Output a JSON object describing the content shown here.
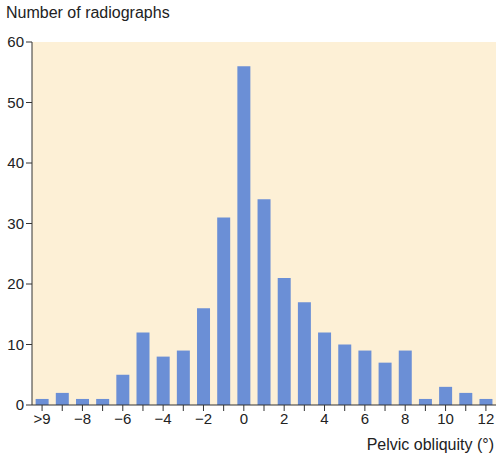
{
  "chart_data": {
    "type": "bar",
    "y_label": "Number of radiographs",
    "x_label": "Pelvic obliquity (°)",
    "categories": [
      ">9",
      null,
      "−8",
      null,
      "−6",
      null,
      "−4",
      null,
      "−2",
      null,
      "0",
      null,
      "2",
      null,
      "4",
      null,
      "6",
      null,
      "8",
      null,
      "10",
      null,
      "12"
    ],
    "values": [
      1,
      2,
      1,
      1,
      5,
      12,
      8,
      9,
      16,
      31,
      56,
      34,
      21,
      17,
      12,
      10,
      9,
      7,
      9,
      1,
      3,
      2,
      1
    ],
    "color": "#6b8fd6",
    "ylim": [
      0,
      60
    ],
    "yticks": [
      0,
      10,
      20,
      30,
      40,
      50,
      60
    ],
    "grid": false
  }
}
